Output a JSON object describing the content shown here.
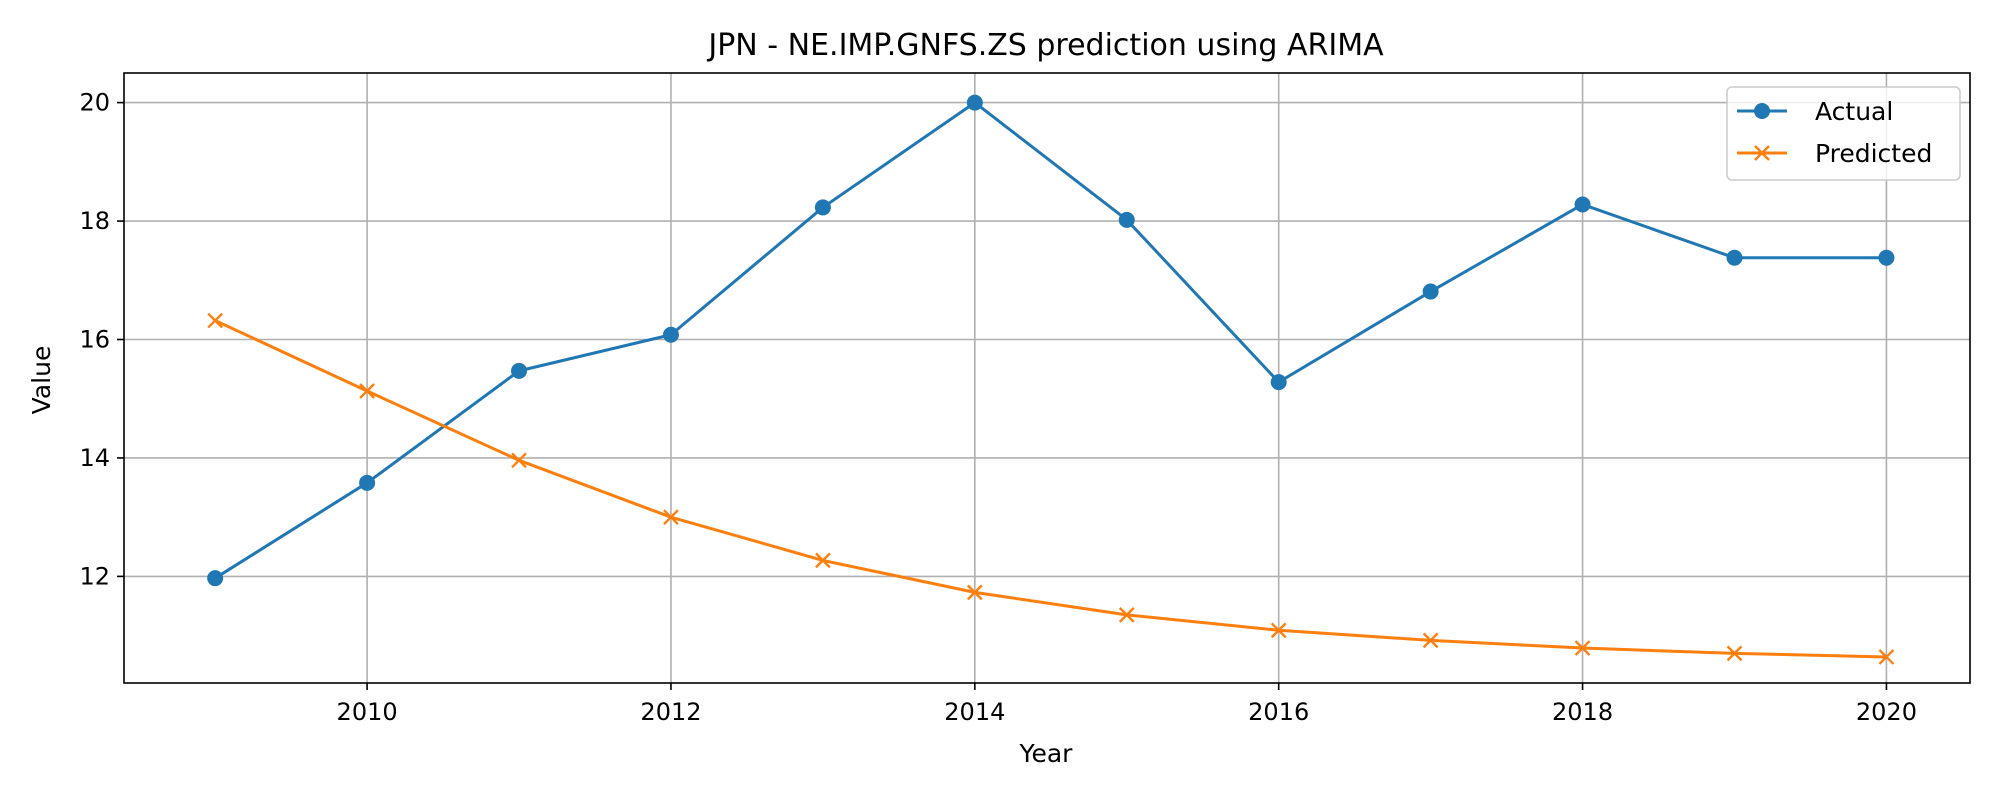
{
  "chart_data": {
    "type": "line",
    "title": "JPN - NE.IMP.GNFS.ZS prediction using ARIMA",
    "xlabel": "Year",
    "ylabel": "Value",
    "x": [
      2009,
      2010,
      2011,
      2012,
      2013,
      2014,
      2015,
      2016,
      2017,
      2018,
      2019,
      2020
    ],
    "xlim": [
      2008.4,
      2020.55
    ],
    "ylim": [
      10.2,
      20.5
    ],
    "xticks": [
      2010,
      2012,
      2014,
      2016,
      2018,
      2020
    ],
    "yticks": [
      12,
      14,
      16,
      18,
      20
    ],
    "grid": true,
    "legend_position": "top-right",
    "series": [
      {
        "name": "Actual",
        "color": "#1f77b4",
        "marker": "circle",
        "values": [
          11.97,
          13.58,
          15.47,
          16.08,
          18.23,
          20.0,
          18.02,
          15.28,
          16.81,
          18.28,
          17.38,
          17.38
        ]
      },
      {
        "name": "Predicted",
        "color": "#ff7f0e",
        "marker": "x",
        "values": [
          16.32,
          15.13,
          13.96,
          13.0,
          12.27,
          11.73,
          11.35,
          11.09,
          10.92,
          10.79,
          10.7,
          10.64
        ]
      }
    ]
  }
}
